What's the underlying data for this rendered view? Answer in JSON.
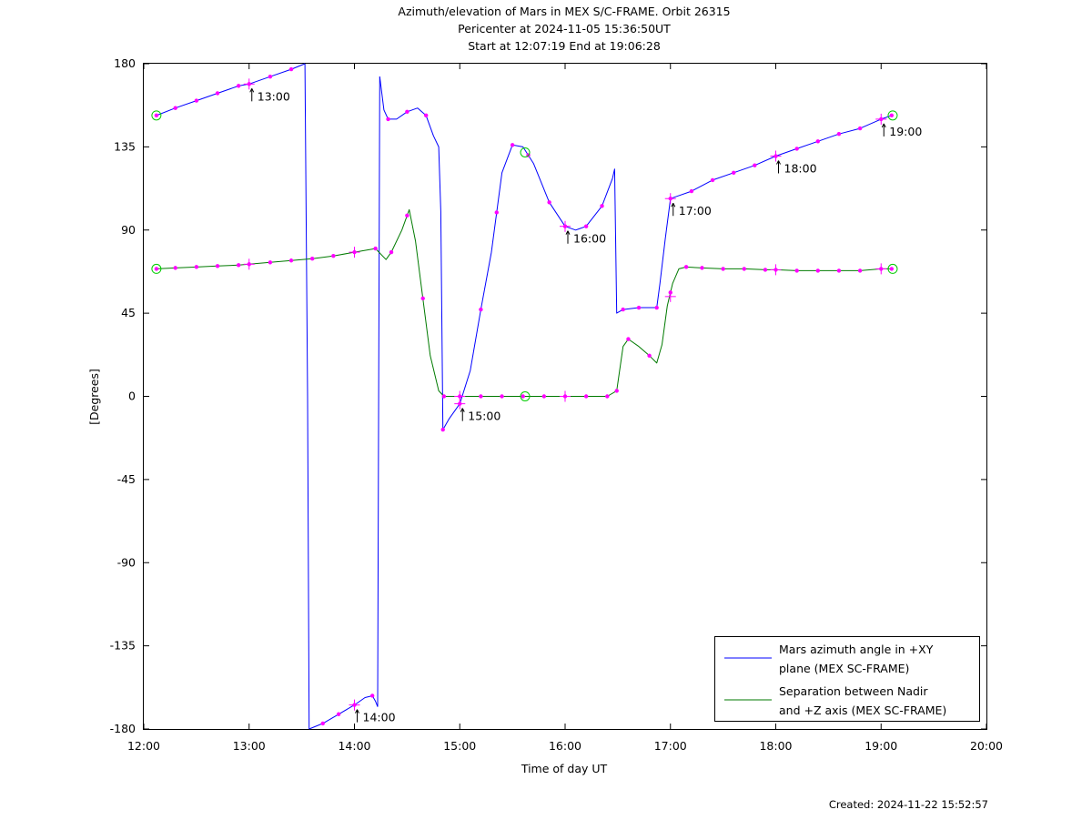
{
  "header": {
    "title_line1": "Azimuth/elevation of Mars in MEX S/C-FRAME.  Orbit 26315",
    "title_line2": "Pericenter at 2024-11-05 15:36:50UT",
    "title_line3": "Start at 12:07:19 End at 19:06:28"
  },
  "footer": {
    "created": "Created: 2024-11-22 15:52:57"
  },
  "chart_data": {
    "type": "line",
    "title": "Azimuth/elevation of Mars in MEX S/C-FRAME.  Orbit 26315",
    "subtitle": "Pericenter at 2024-11-05 15:36:50UT / Start at 12:07:19 End at 19:06:28",
    "xlabel": "Time of day UT",
    "ylabel": "[Degrees]",
    "xlim": [
      12.0,
      20.0
    ],
    "ylim": [
      -180,
      180
    ],
    "x_ticks": [
      12,
      13,
      14,
      15,
      16,
      17,
      18,
      19,
      20
    ],
    "x_tick_labels": [
      "12:00",
      "13:00",
      "14:00",
      "15:00",
      "16:00",
      "17:00",
      "18:00",
      "19:00",
      "20:00"
    ],
    "y_ticks": [
      180,
      135,
      90,
      45,
      0,
      -45,
      -90,
      -135,
      -180
    ],
    "y_tick_labels": [
      "180",
      "135",
      "90",
      "45",
      "0",
      "-45",
      "-90",
      "-135",
      "-180"
    ],
    "grid": false,
    "legend_position": "bottom-right",
    "colors": {
      "azimuth": "#0000ff",
      "separation": "#007a00",
      "marker": "#ff00ff",
      "circle": "#00cc00",
      "axes": "#000000"
    },
    "series": [
      {
        "name": "Mars azimuth angle in +XY plane (MEX SC-FRAME)",
        "color": "#0000ff",
        "segments": [
          [
            [
              12.12,
              152
            ],
            [
              12.3,
              156
            ],
            [
              12.5,
              160
            ],
            [
              12.7,
              164
            ],
            [
              12.9,
              168
            ],
            [
              13.0,
              169
            ],
            [
              13.2,
              173
            ],
            [
              13.4,
              177
            ],
            [
              13.53,
              180
            ]
          ],
          [
            [
              13.53,
              180
            ],
            [
              13.555,
              0
            ],
            [
              13.57,
              -180
            ]
          ],
          [
            [
              13.57,
              -180
            ],
            [
              13.7,
              -177
            ],
            [
              13.85,
              -172
            ],
            [
              14.0,
              -167
            ],
            [
              14.1,
              -163
            ],
            [
              14.17,
              -162
            ],
            [
              14.2,
              -165
            ],
            [
              14.22,
              -168
            ]
          ],
          [
            [
              14.22,
              -168
            ],
            [
              14.23,
              0
            ],
            [
              14.24,
              173
            ]
          ],
          [
            [
              14.24,
              173
            ],
            [
              14.28,
              155
            ],
            [
              14.32,
              150
            ],
            [
              14.4,
              150
            ],
            [
              14.5,
              154
            ],
            [
              14.6,
              156
            ],
            [
              14.68,
              152
            ],
            [
              14.75,
              141
            ],
            [
              14.8,
              135
            ],
            [
              14.82,
              100
            ],
            [
              14.84,
              -18
            ]
          ],
          [
            [
              14.84,
              -18
            ],
            [
              14.9,
              -12
            ],
            [
              15.0,
              -4
            ],
            [
              15.1,
              14
            ],
            [
              15.2,
              47
            ],
            [
              15.3,
              78
            ],
            [
              15.4,
              121
            ],
            [
              15.5,
              136
            ],
            [
              15.6,
              135
            ],
            [
              15.7,
              126
            ],
            [
              15.85,
              105
            ],
            [
              16.0,
              92
            ],
            [
              16.1,
              90
            ],
            [
              16.2,
              92
            ],
            [
              16.35,
              103
            ],
            [
              16.45,
              118
            ],
            [
              16.47,
              123
            ],
            [
              16.49,
              45
            ],
            [
              16.55,
              47
            ],
            [
              16.7,
              48
            ],
            [
              16.87,
              48
            ],
            [
              16.9,
              61
            ],
            [
              16.95,
              85
            ],
            [
              17.0,
              107
            ],
            [
              17.05,
              108
            ],
            [
              17.2,
              111
            ],
            [
              17.4,
              117
            ],
            [
              17.6,
              121
            ],
            [
              17.8,
              125
            ],
            [
              18.0,
              130
            ],
            [
              18.2,
              134
            ],
            [
              18.4,
              138
            ],
            [
              18.6,
              142
            ],
            [
              18.8,
              145
            ],
            [
              19.0,
              150
            ],
            [
              19.1,
              152
            ]
          ]
        ],
        "markers_x": [
          12.12,
          12.3,
          12.5,
          12.7,
          12.9,
          13.0,
          13.2,
          13.4,
          13.7,
          13.85,
          14.0,
          14.17,
          14.32,
          14.5,
          14.68,
          14.84,
          15.0,
          15.2,
          15.35,
          15.5,
          15.65,
          15.85,
          16.0,
          16.2,
          16.35,
          16.55,
          16.7,
          16.87,
          17.0,
          17.2,
          17.4,
          17.6,
          17.8,
          18.0,
          18.2,
          18.4,
          18.6,
          18.8,
          19.0,
          19.1
        ]
      },
      {
        "name": "Separation between Nadir and +Z axis (MEX SC-FRAME)",
        "color": "#007a00",
        "segments": [
          [
            [
              12.12,
              69
            ],
            [
              12.3,
              69.5
            ],
            [
              12.5,
              70
            ],
            [
              12.7,
              70.5
            ],
            [
              12.9,
              71
            ],
            [
              13.0,
              71.5
            ],
            [
              13.2,
              72.5
            ],
            [
              13.4,
              73.5
            ],
            [
              13.6,
              74.5
            ],
            [
              13.8,
              76
            ],
            [
              14.0,
              78
            ],
            [
              14.2,
              80
            ],
            [
              14.3,
              74
            ],
            [
              14.35,
              78
            ],
            [
              14.45,
              90
            ],
            [
              14.52,
              101
            ],
            [
              14.58,
              84
            ],
            [
              14.65,
              53
            ],
            [
              14.72,
              22
            ],
            [
              14.8,
              3
            ],
            [
              14.85,
              0
            ],
            [
              15.0,
              0
            ],
            [
              15.2,
              0
            ],
            [
              15.4,
              0
            ],
            [
              15.6,
              0
            ],
            [
              15.8,
              0
            ],
            [
              16.0,
              0
            ],
            [
              16.2,
              0
            ],
            [
              16.4,
              0
            ],
            [
              16.49,
              3
            ],
            [
              16.55,
              27
            ],
            [
              16.6,
              31
            ],
            [
              16.7,
              27
            ],
            [
              16.8,
              22
            ],
            [
              16.87,
              18
            ],
            [
              16.92,
              28
            ],
            [
              16.97,
              49
            ],
            [
              17.02,
              61
            ],
            [
              17.08,
              69
            ],
            [
              17.15,
              70
            ],
            [
              17.3,
              69.5
            ],
            [
              17.5,
              69
            ],
            [
              17.7,
              69
            ],
            [
              17.9,
              68.5
            ],
            [
              18.0,
              68.5
            ],
            [
              18.2,
              68
            ],
            [
              18.4,
              68
            ],
            [
              18.6,
              68
            ],
            [
              18.8,
              68
            ],
            [
              19.0,
              69
            ],
            [
              19.1,
              69
            ]
          ]
        ],
        "markers_x": [
          12.12,
          12.3,
          12.5,
          12.7,
          12.9,
          13.0,
          13.2,
          13.4,
          13.6,
          13.8,
          14.0,
          14.2,
          14.35,
          14.5,
          14.65,
          14.85,
          15.0,
          15.2,
          15.4,
          15.6,
          15.8,
          16.0,
          16.2,
          16.4,
          16.49,
          16.6,
          16.8,
          17.0,
          17.15,
          17.3,
          17.5,
          17.7,
          17.9,
          18.0,
          18.2,
          18.4,
          18.6,
          18.8,
          19.0,
          19.1
        ]
      }
    ],
    "hour_markers": [
      {
        "x": 13.0,
        "y": 169,
        "label": "13:00"
      },
      {
        "x": 14.0,
        "y": -167,
        "label": "14:00"
      },
      {
        "x": 15.0,
        "y": -4,
        "label": "15:00"
      },
      {
        "x": 16.0,
        "y": 92,
        "label": "16:00"
      },
      {
        "x": 17.0,
        "y": 107,
        "label": "17:00"
      },
      {
        "x": 18.0,
        "y": 130,
        "label": "18:00"
      },
      {
        "x": 19.0,
        "y": 150,
        "label": "19:00"
      }
    ],
    "hour_crosses_separation": [
      {
        "x": 13.0,
        "y": 71.5
      },
      {
        "x": 14.0,
        "y": 78
      },
      {
        "x": 15.0,
        "y": 0
      },
      {
        "x": 16.0,
        "y": 0
      },
      {
        "x": 17.0,
        "y": 54
      },
      {
        "x": 18.0,
        "y": 68.5
      },
      {
        "x": 19.0,
        "y": 69
      }
    ],
    "event_circles": [
      {
        "x": 12.12,
        "y": 152
      },
      {
        "x": 12.12,
        "y": 69
      },
      {
        "x": 15.62,
        "y": 132
      },
      {
        "x": 15.62,
        "y": 0
      },
      {
        "x": 19.11,
        "y": 152
      },
      {
        "x": 19.11,
        "y": 69
      }
    ],
    "legend": [
      {
        "line1": "Mars azimuth angle in +XY",
        "line2": "plane (MEX SC-FRAME)",
        "color": "#0000ff"
      },
      {
        "line1": "Separation between Nadir",
        "line2": "and +Z axis (MEX SC-FRAME)",
        "color": "#007a00"
      }
    ]
  }
}
